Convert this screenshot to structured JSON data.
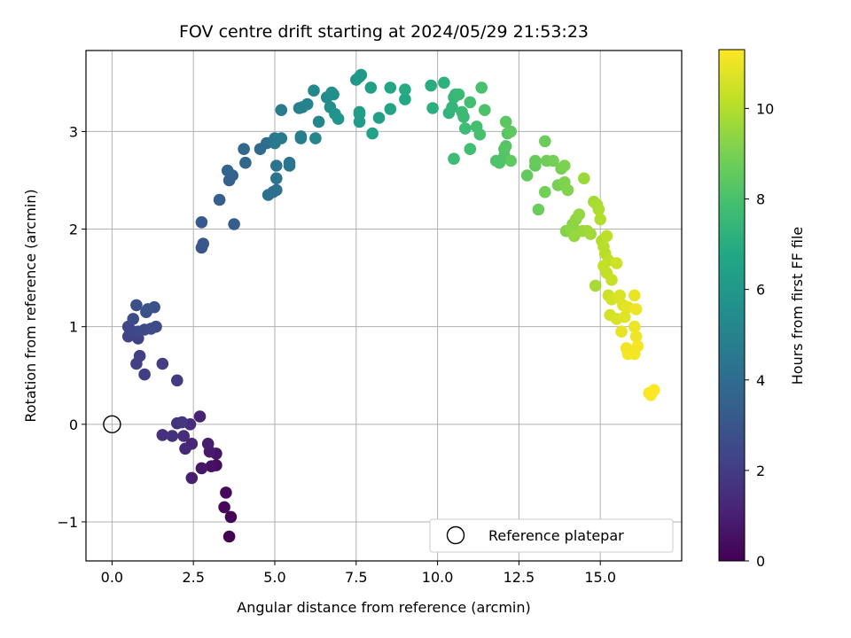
{
  "chart_data": {
    "type": "scatter",
    "title": "FOV centre drift starting at 2024/05/29 21:53:23",
    "xlabel": "Angular distance from reference (arcmin)",
    "ylabel": "Rotation from reference (arcmin)",
    "xlim": [
      -0.8,
      17.5
    ],
    "ylim": [
      -1.4,
      3.83
    ],
    "xticks": [
      0.0,
      2.5,
      5.0,
      7.5,
      10.0,
      12.5,
      15.0
    ],
    "xtick_labels": [
      "0.0",
      "2.5",
      "5.0",
      "7.5",
      "10.0",
      "12.5",
      "15.0"
    ],
    "yticks": [
      -1,
      0,
      1,
      2,
      3
    ],
    "ytick_labels": [
      "−1",
      "0",
      "1",
      "2",
      "3"
    ],
    "grid": true,
    "colormap": "viridis",
    "colorbar": {
      "label": "Hours from first FF file",
      "range": [
        0,
        11.3
      ],
      "ticks": [
        0,
        2,
        4,
        6,
        8,
        10
      ],
      "tick_labels": [
        "0",
        "2",
        "4",
        "6",
        "8",
        "10"
      ]
    },
    "legend": {
      "location": "lower-right",
      "entries": [
        "Reference platepar"
      ]
    },
    "reference_point": {
      "x": 0.0,
      "y": 0.0
    },
    "series": [
      {
        "points": [
          [
            3.6,
            -1.15,
            0.0
          ],
          [
            3.65,
            -0.95,
            0.1
          ],
          [
            3.45,
            -0.85,
            0.2
          ],
          [
            3.5,
            -0.7,
            0.3
          ],
          [
            3.2,
            -0.42,
            0.4
          ],
          [
            3.05,
            -0.43,
            0.5
          ],
          [
            3.2,
            -0.3,
            0.6
          ],
          [
            2.75,
            -0.45,
            0.7
          ],
          [
            3.0,
            -0.28,
            0.8
          ],
          [
            2.95,
            -0.2,
            0.9
          ],
          [
            2.45,
            -0.55,
            1.0
          ],
          [
            2.7,
            0.08,
            1.1
          ],
          [
            2.45,
            -0.2,
            1.2
          ],
          [
            2.25,
            -0.25,
            1.3
          ],
          [
            2.4,
            0.0,
            1.4
          ],
          [
            2.2,
            -0.12,
            1.5
          ],
          [
            1.85,
            -0.12,
            1.55
          ],
          [
            1.55,
            -0.11,
            1.6
          ],
          [
            2.0,
            0.01,
            1.7
          ],
          [
            2.15,
            0.02,
            1.8
          ],
          [
            2.0,
            0.45,
            1.9
          ],
          [
            1.55,
            0.62,
            2.0
          ],
          [
            1.0,
            0.51,
            2.05
          ],
          [
            0.85,
            0.7,
            2.1
          ],
          [
            0.75,
            0.62,
            2.15
          ],
          [
            0.8,
            0.88,
            2.2
          ],
          [
            0.5,
            0.9,
            2.25
          ],
          [
            0.55,
            0.97,
            2.3
          ],
          [
            0.5,
            1.0,
            2.35
          ],
          [
            0.65,
            0.95,
            2.4
          ],
          [
            0.8,
            0.95,
            2.45
          ],
          [
            1.0,
            0.97,
            2.5
          ],
          [
            1.2,
            0.98,
            2.55
          ],
          [
            1.35,
            1.0,
            2.6
          ],
          [
            0.65,
            1.08,
            2.65
          ],
          [
            0.75,
            1.22,
            2.7
          ],
          [
            1.05,
            1.15,
            2.75
          ],
          [
            1.3,
            1.2,
            2.8
          ],
          [
            1.1,
            1.18,
            2.85
          ],
          [
            2.75,
            1.81,
            3.0
          ],
          [
            2.8,
            1.85,
            3.1
          ],
          [
            2.75,
            2.07,
            3.2
          ],
          [
            3.75,
            2.05,
            3.3
          ],
          [
            3.3,
            2.3,
            3.4
          ],
          [
            3.6,
            2.5,
            3.5
          ],
          [
            3.7,
            2.55,
            3.55
          ],
          [
            3.55,
            2.6,
            3.6
          ],
          [
            4.1,
            2.68,
            3.7
          ],
          [
            4.05,
            2.82,
            3.8
          ],
          [
            4.55,
            2.82,
            3.9
          ],
          [
            4.75,
            2.88,
            4.0
          ],
          [
            4.8,
            2.35,
            4.1
          ],
          [
            5.05,
            2.4,
            4.15
          ],
          [
            4.95,
            2.38,
            4.2
          ],
          [
            5.05,
            2.52,
            4.3
          ],
          [
            5.05,
            2.65,
            4.35
          ],
          [
            5.45,
            2.65,
            4.4
          ],
          [
            5.45,
            2.68,
            4.45
          ],
          [
            5.0,
            2.88,
            4.5
          ],
          [
            5.0,
            2.93,
            4.55
          ],
          [
            5.2,
            2.93,
            4.6
          ],
          [
            5.2,
            3.22,
            4.7
          ],
          [
            5.8,
            2.93,
            4.8
          ],
          [
            5.8,
            2.95,
            4.85
          ],
          [
            5.75,
            3.24,
            4.9
          ],
          [
            5.85,
            3.25,
            4.95
          ],
          [
            6.0,
            3.28,
            5.0
          ],
          [
            6.25,
            2.93,
            5.1
          ],
          [
            6.35,
            3.1,
            5.2
          ],
          [
            6.2,
            3.42,
            5.3
          ],
          [
            6.6,
            3.35,
            5.4
          ],
          [
            6.7,
            3.25,
            5.5
          ],
          [
            6.8,
            3.38,
            5.55
          ],
          [
            6.75,
            3.4,
            5.6
          ],
          [
            6.85,
            3.18,
            5.7
          ],
          [
            6.95,
            3.13,
            5.8
          ],
          [
            7.5,
            3.53,
            5.9
          ],
          [
            7.65,
            3.58,
            6.0
          ],
          [
            7.6,
            3.56,
            6.05
          ],
          [
            7.6,
            3.18,
            6.1
          ],
          [
            7.6,
            3.1,
            6.2
          ],
          [
            7.6,
            3.2,
            6.25
          ],
          [
            7.95,
            3.45,
            6.3
          ],
          [
            8.2,
            3.14,
            6.4
          ],
          [
            8.0,
            2.98,
            6.5
          ],
          [
            8.55,
            3.23,
            6.6
          ],
          [
            8.55,
            3.45,
            6.7
          ],
          [
            9.0,
            3.33,
            6.8
          ],
          [
            9.0,
            3.43,
            6.9
          ],
          [
            9.8,
            3.47,
            7.0
          ],
          [
            9.85,
            3.24,
            7.1
          ],
          [
            10.2,
            3.5,
            7.2
          ],
          [
            10.35,
            3.19,
            7.3
          ],
          [
            10.45,
            3.25,
            7.4
          ],
          [
            10.5,
            3.35,
            7.45
          ],
          [
            10.55,
            3.38,
            7.5
          ],
          [
            10.65,
            3.38,
            7.55
          ],
          [
            10.75,
            3.2,
            7.6
          ],
          [
            10.8,
            3.15,
            7.65
          ],
          [
            10.5,
            2.72,
            7.7
          ],
          [
            10.85,
            3.03,
            7.75
          ],
          [
            11.0,
            2.82,
            7.8
          ],
          [
            11.0,
            3.3,
            7.85
          ],
          [
            11.2,
            3.05,
            7.9
          ],
          [
            11.3,
            2.97,
            7.95
          ],
          [
            11.35,
            3.45,
            8.0
          ],
          [
            11.45,
            3.22,
            8.05
          ],
          [
            11.8,
            2.7,
            8.1
          ],
          [
            11.9,
            2.68,
            8.15
          ],
          [
            12.05,
            2.75,
            8.2
          ],
          [
            12.05,
            2.82,
            8.25
          ],
          [
            12.1,
            2.85,
            8.3
          ],
          [
            12.15,
            2.98,
            8.35
          ],
          [
            12.1,
            3.1,
            8.4
          ],
          [
            12.25,
            2.7,
            8.45
          ],
          [
            12.25,
            3.0,
            8.5
          ],
          [
            12.75,
            2.55,
            8.55
          ],
          [
            13.0,
            2.65,
            8.6
          ],
          [
            13.0,
            2.7,
            8.65
          ],
          [
            13.1,
            2.2,
            8.7
          ],
          [
            13.3,
            2.9,
            8.75
          ],
          [
            13.35,
            2.7,
            8.8
          ],
          [
            13.3,
            2.38,
            8.85
          ],
          [
            13.55,
            2.7,
            8.9
          ],
          [
            13.7,
            2.45,
            8.95
          ],
          [
            13.8,
            2.62,
            9.0
          ],
          [
            13.9,
            2.65,
            9.05
          ],
          [
            13.9,
            2.48,
            9.1
          ],
          [
            14.0,
            2.4,
            9.15
          ],
          [
            13.95,
            1.98,
            9.2
          ],
          [
            14.15,
            2.05,
            9.25
          ],
          [
            14.2,
            2.0,
            9.3
          ],
          [
            14.1,
            2.0,
            9.35
          ],
          [
            14.25,
            2.1,
            9.4
          ],
          [
            14.35,
            2.15,
            9.45
          ],
          [
            14.2,
            1.93,
            9.5
          ],
          [
            14.45,
            1.98,
            9.55
          ],
          [
            14.5,
            2.52,
            9.6
          ],
          [
            14.6,
            1.98,
            9.65
          ],
          [
            14.7,
            1.95,
            9.7
          ],
          [
            14.8,
            2.28,
            9.75
          ],
          [
            14.85,
            1.42,
            9.8
          ],
          [
            14.9,
            2.25,
            9.85
          ],
          [
            14.95,
            2.2,
            9.9
          ],
          [
            15.05,
            1.88,
            9.95
          ],
          [
            15.0,
            2.1,
            10.0
          ],
          [
            15.1,
            1.82,
            10.05
          ],
          [
            15.15,
            1.75,
            10.1
          ],
          [
            15.2,
            1.93,
            10.15
          ],
          [
            15.25,
            1.68,
            10.2
          ],
          [
            15.1,
            1.62,
            10.25
          ],
          [
            15.2,
            1.55,
            10.3
          ],
          [
            15.35,
            1.48,
            10.35
          ],
          [
            15.25,
            1.32,
            10.4
          ],
          [
            15.5,
            1.65,
            10.45
          ],
          [
            15.35,
            1.28,
            10.5
          ],
          [
            15.3,
            1.12,
            10.55
          ],
          [
            15.55,
            1.3,
            10.6
          ],
          [
            15.5,
            1.08,
            10.65
          ],
          [
            15.6,
            1.32,
            10.7
          ],
          [
            15.7,
            1.22,
            10.75
          ],
          [
            15.75,
            1.1,
            10.8
          ],
          [
            15.85,
            1.2,
            10.85
          ],
          [
            15.65,
            0.95,
            10.9
          ],
          [
            16.05,
            1.32,
            10.95
          ],
          [
            16.05,
            1.0,
            11.0
          ],
          [
            16.1,
            1.18,
            11.02
          ],
          [
            16.1,
            0.9,
            11.05
          ],
          [
            15.8,
            0.78,
            11.07
          ],
          [
            15.85,
            0.72,
            11.1
          ],
          [
            16.05,
            0.72,
            11.12
          ],
          [
            16.15,
            0.8,
            11.15
          ],
          [
            16.5,
            0.32,
            11.2
          ],
          [
            16.55,
            0.3,
            11.25
          ],
          [
            16.65,
            0.35,
            11.3
          ]
        ]
      }
    ]
  }
}
